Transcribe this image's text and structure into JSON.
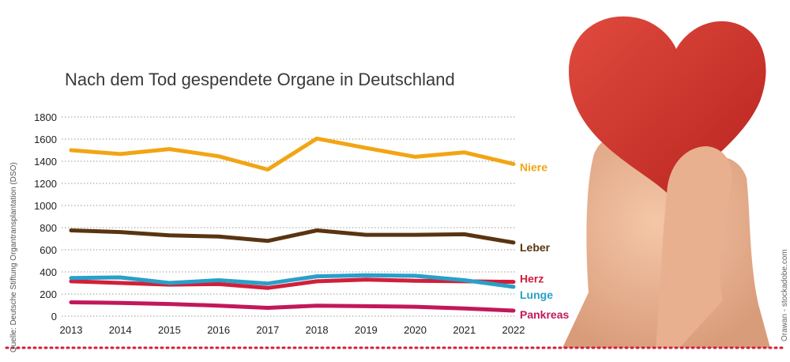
{
  "title": "Nach dem Tod gespendete Organe in Deutschland",
  "source": "Quelle: Deutsche Stiftung Organtransplantation (DSO)",
  "photo_credit": "Orawan - stockadobe.com",
  "chart_data": {
    "type": "line",
    "title": "Nach dem Tod gespendete Organe in Deutschland",
    "x": [
      2013,
      2014,
      2015,
      2016,
      2017,
      2018,
      2019,
      2020,
      2021,
      2022
    ],
    "ylim": [
      0,
      1800
    ],
    "yticks": [
      0,
      200,
      400,
      600,
      800,
      1000,
      1200,
      1400,
      1600,
      1800
    ],
    "grid": true,
    "series": [
      {
        "name": "Niere",
        "color": "#f2a514",
        "values": [
          1500,
          1465,
          1510,
          1445,
          1325,
          1605,
          1520,
          1440,
          1480,
          1375
        ]
      },
      {
        "name": "Leber",
        "color": "#5a3410",
        "values": [
          775,
          760,
          730,
          720,
          680,
          775,
          735,
          735,
          740,
          665
        ]
      },
      {
        "name": "Herz",
        "color": "#d11f3b",
        "values": [
          315,
          300,
          285,
          290,
          255,
          315,
          330,
          320,
          315,
          310
        ]
      },
      {
        "name": "Lunge",
        "color": "#29a0c8",
        "values": [
          345,
          350,
          300,
          325,
          295,
          360,
          370,
          365,
          325,
          265
        ]
      },
      {
        "name": "Pankreas",
        "color": "#c2185b",
        "values": [
          125,
          120,
          110,
          95,
          75,
          95,
          90,
          85,
          70,
          50
        ]
      }
    ]
  }
}
